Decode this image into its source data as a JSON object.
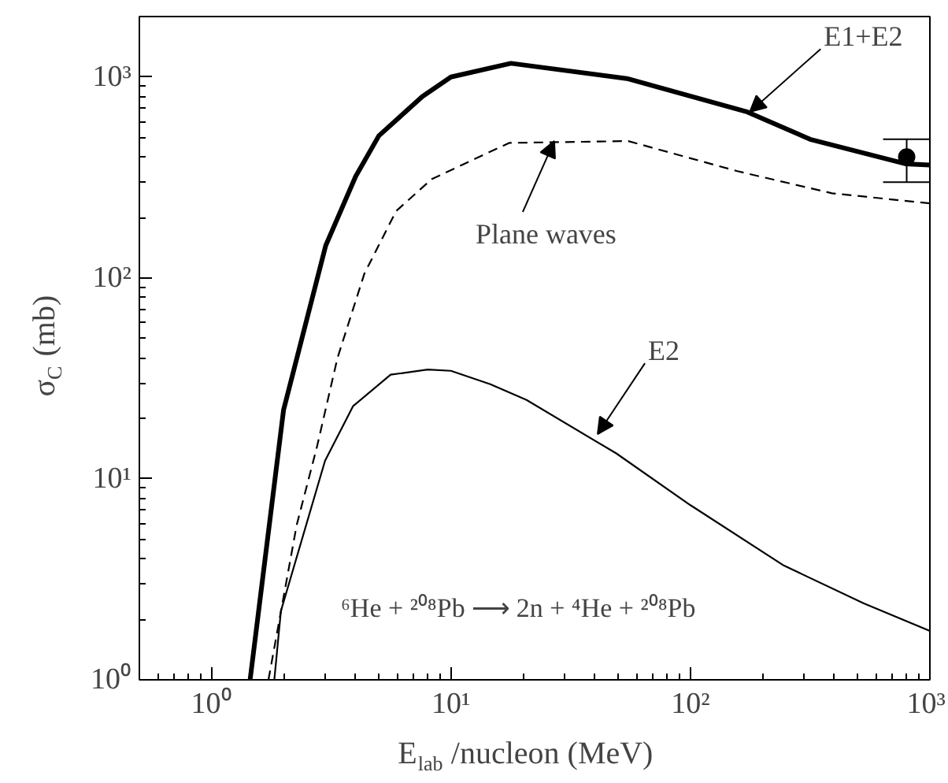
{
  "chart_data": {
    "type": "line",
    "xlabel": "E$_{lab}$/nucleon (MeV)",
    "ylabel": "σ$_{C}$ (mb)",
    "log": "xy",
    "grid": false,
    "xlim": [
      0.5,
      1000
    ],
    "ylim": [
      1,
      2000
    ],
    "xticks": [
      {
        "value": 1,
        "label": "10⁰"
      },
      {
        "value": 10,
        "label": "10¹"
      },
      {
        "value": 100,
        "label": "10²"
      },
      {
        "value": 1000,
        "label": "10³"
      }
    ],
    "yticks": [
      {
        "value": 1,
        "label": "10⁰"
      },
      {
        "value": 10,
        "label": "10¹"
      },
      {
        "value": 100,
        "label": "10²"
      },
      {
        "value": 1000,
        "label": "10³"
      }
    ],
    "series": [
      {
        "color": "#000000",
        "line_style": "solid",
        "x": [
          1.45,
          2,
          3,
          4,
          5,
          7.6,
          10,
          17.8,
          55,
          173,
          316,
          790,
          1000
        ],
        "values": [
          1,
          22,
          145,
          320,
          510,
          800,
          1000,
          1170,
          980,
          670,
          490,
          370,
          365
        ]
      },
      {
        "color": "#000000",
        "line_style": "dashed",
        "x": [
          1.73,
          2.27,
          2.76,
          3.36,
          4.35,
          5.9,
          8.3,
          12.5,
          17.5,
          55,
          157,
          390,
          1000
        ],
        "values": [
          1,
          5.9,
          14.5,
          40,
          105,
          215,
          310,
          390,
          470,
          480,
          340,
          264,
          235
        ]
      },
      {
        "color": "#000000",
        "line_style": "solid",
        "x": [
          1.83,
          1.95,
          2.98,
          3.9,
          5.6,
          8,
          10,
          14.6,
          20.7,
          49,
          100,
          246,
          530,
          1000
        ],
        "values": [
          1,
          2.2,
          12.3,
          23,
          33,
          35,
          34.5,
          29.6,
          24.7,
          13.4,
          7.4,
          3.7,
          2.4,
          1.75
        ]
      },
      {
        "type": "scatter",
        "color": "#000000",
        "marker": "circle",
        "x": [
          800
        ],
        "values": [
          400
        ],
        "errors": [
          [
            300,
            490
          ]
        ]
      }
    ],
    "annotations": [
      {
        "text": "E1+E2",
        "x": 177,
        "y": 670
      },
      {
        "text": "Plane waves",
        "x": 27,
        "y": 480
      },
      {
        "text": "E2",
        "x": 41,
        "y": 16.7
      },
      "⁶He + ²⁰⁸Pb ⟶ 2n + ⁴He + ²⁰⁸Pb"
    ]
  }
}
